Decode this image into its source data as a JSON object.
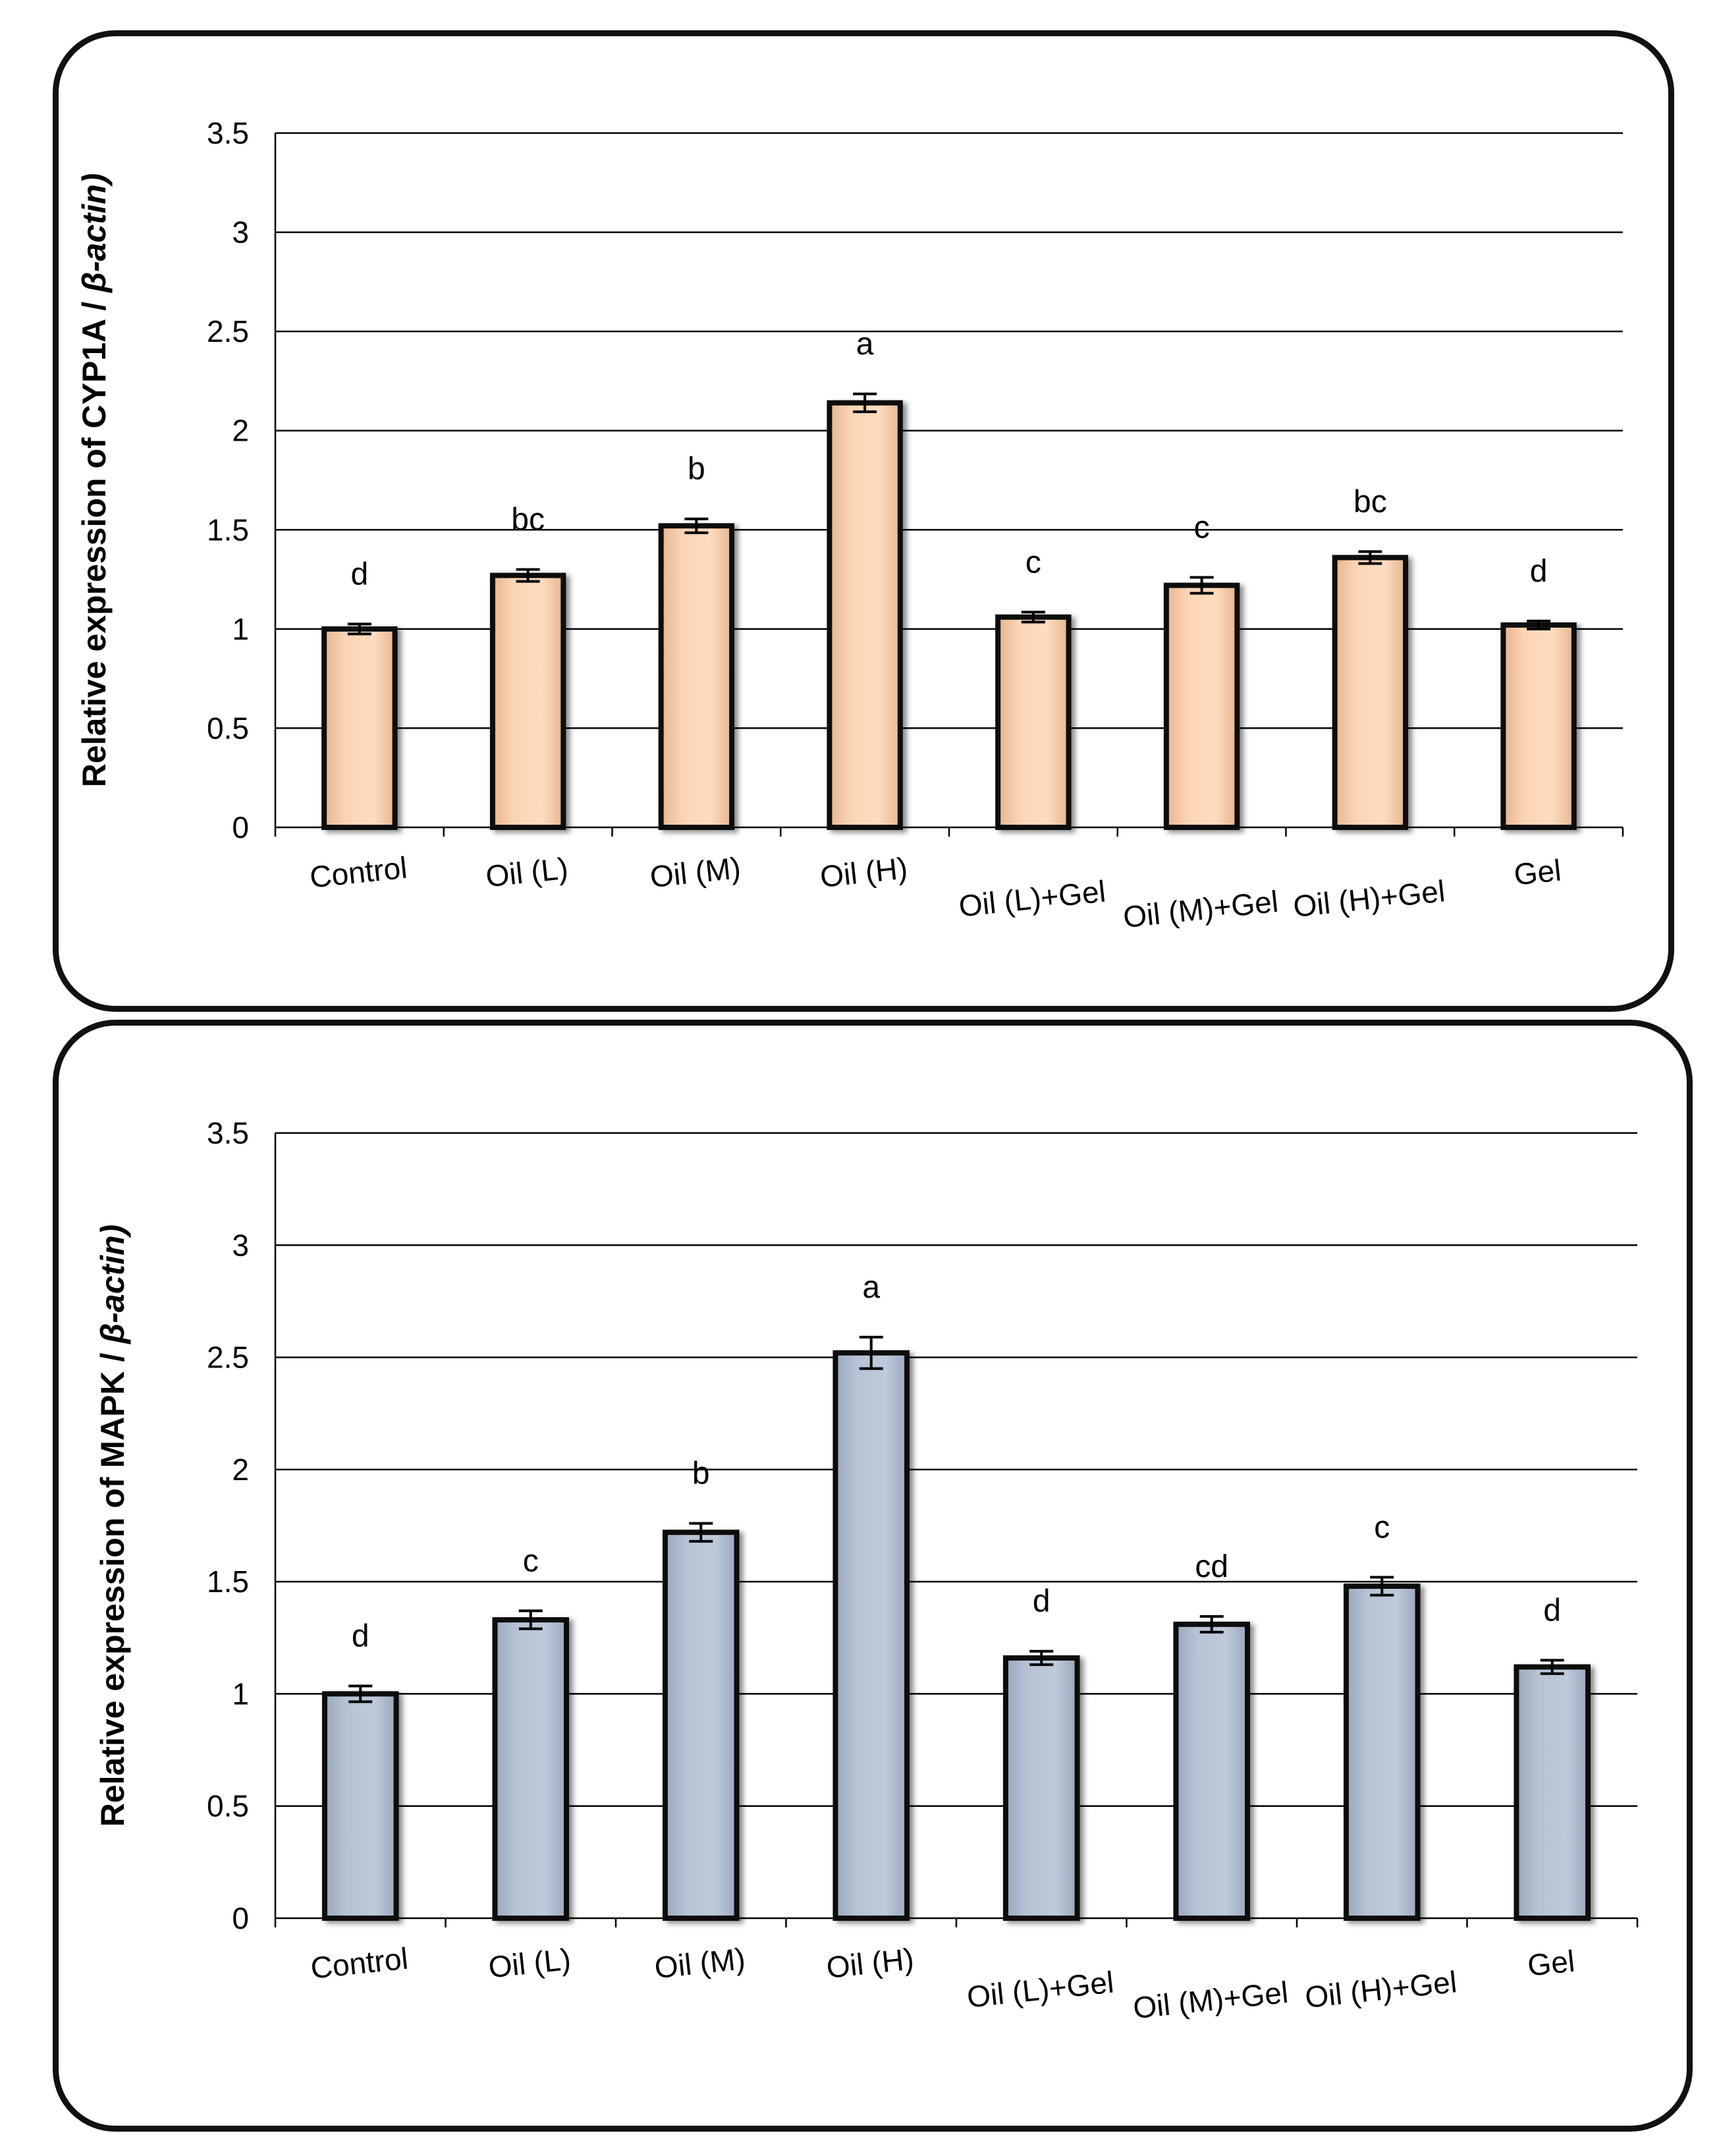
{
  "chart_data": [
    {
      "type": "bar",
      "title": "",
      "xlabel": "",
      "ylabel": "Relative expression of CYP1A / ",
      "ylabel_italic": "β-actin)",
      "ylim": [
        0,
        3.5
      ],
      "ytick_labels": [
        "0",
        "0.5",
        "1",
        "1.5",
        "2",
        "2.5",
        "3",
        "3.5"
      ],
      "categories": [
        "Control",
        "Oil (L)",
        "Oil (M)",
        "Oil (H)",
        "Oil (L)+Gel",
        "Oil (M)+Gel",
        "Oil (H)+Gel",
        "Gel"
      ],
      "values": [
        1.0,
        1.27,
        1.52,
        2.14,
        1.06,
        1.22,
        1.36,
        1.02
      ],
      "errors": [
        0.025,
        0.03,
        0.035,
        0.045,
        0.025,
        0.04,
        0.03,
        0.02
      ],
      "significance": [
        "d",
        "bc",
        "b",
        "a",
        "c",
        "c",
        "bc",
        "d"
      ],
      "bar_color": "#FBD5B5",
      "grid": true
    },
    {
      "type": "bar",
      "title": "",
      "xlabel": "",
      "ylabel": "Relative expression of MAPK / ",
      "ylabel_italic": "β-actin)",
      "ylim": [
        0,
        3.5
      ],
      "ytick_labels": [
        "0",
        "0.5",
        "1",
        "1.5",
        "2",
        "2.5",
        "3",
        "3.5"
      ],
      "categories": [
        "Control",
        "Oil (L)",
        "Oil (M)",
        "Oil (H)",
        "Oil (L)+Gel",
        "Oil (M)+Gel",
        "Oil (H)+Gel",
        "Gel"
      ],
      "values": [
        1.0,
        1.33,
        1.72,
        2.52,
        1.16,
        1.31,
        1.48,
        1.12
      ],
      "errors": [
        0.035,
        0.04,
        0.04,
        0.07,
        0.03,
        0.035,
        0.04,
        0.03
      ],
      "significance": [
        "d",
        "c",
        "b",
        "a",
        "d",
        "cd",
        "c",
        "d"
      ],
      "bar_color": "#B7C3D5",
      "grid": true
    }
  ]
}
